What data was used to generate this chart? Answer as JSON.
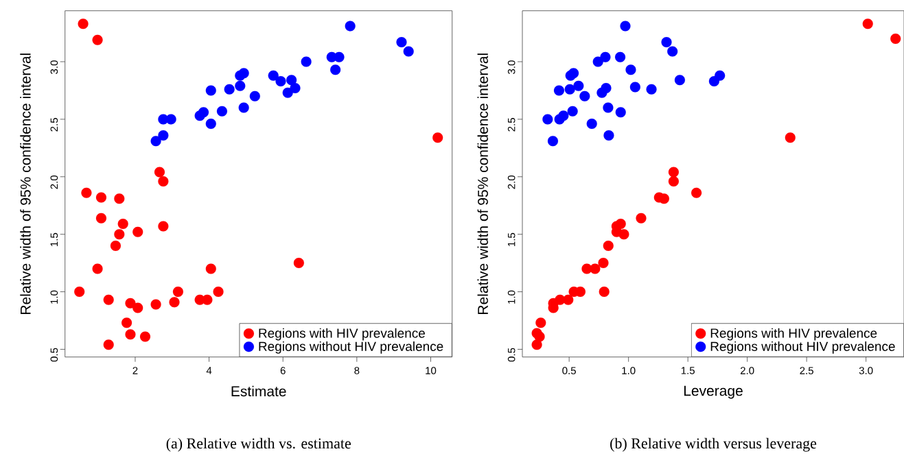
{
  "chart_data": [
    {
      "type": "scatter",
      "title": "(a) Relative width vs. estimate",
      "xlabel": "Estimate",
      "ylabel": "Relative width of 95% confidence interval",
      "xlim": [
        0.1,
        10.58
      ],
      "ylim": [
        0.433,
        3.443
      ],
      "xticks": [
        2,
        4,
        6,
        8,
        10
      ],
      "yticks": [
        0.5,
        {
          "value": 1,
          "label": "1.0"
        },
        1.5,
        {
          "value": 2,
          "label": "2.0"
        },
        2.5,
        {
          "value": 3,
          "label": "3.0"
        }
      ],
      "legend": "bottom right",
      "series": [
        {
          "name": "Regions with HIV prevalence",
          "color": "#ff0000",
          "x": [
            0.59,
            0.98,
            0.68,
            1.08,
            1.57,
            1.08,
            1.67,
            1.57,
            2.07,
            1.47,
            2.66,
            2.76,
            2.76,
            0.98,
            4.05,
            0.49,
            1.28,
            1.87,
            2.07,
            2.56,
            3.06,
            3.16,
            3.75,
            3.95,
            4.25,
            1.77,
            1.87,
            2.27,
            1.28,
            6.43,
            10.19
          ],
          "values": [
            3.33,
            3.19,
            1.86,
            1.82,
            1.81,
            1.64,
            1.59,
            1.5,
            1.52,
            1.4,
            2.04,
            1.96,
            1.57,
            1.2,
            1.2,
            1.0,
            0.93,
            0.9,
            0.86,
            0.89,
            0.91,
            1.0,
            0.93,
            0.93,
            1.0,
            0.73,
            0.63,
            0.61,
            0.54,
            1.25,
            2.34
          ]
        },
        {
          "name": "Regions without HIV prevalence",
          "color": "#0000ff",
          "x": [
            2.56,
            2.76,
            2.76,
            2.97,
            3.75,
            3.85,
            4.05,
            4.35,
            4.94,
            4.05,
            4.55,
            5.24,
            4.84,
            4.84,
            4.94,
            5.74,
            5.94,
            6.23,
            6.33,
            6.13,
            6.63,
            7.32,
            7.52,
            7.42,
            7.82,
            9.21,
            9.4
          ],
          "values": [
            2.31,
            2.36,
            2.5,
            2.5,
            2.53,
            2.56,
            2.46,
            2.57,
            2.6,
            2.75,
            2.76,
            2.7,
            2.79,
            2.88,
            2.9,
            2.88,
            2.83,
            2.84,
            2.77,
            2.73,
            3.0,
            3.04,
            3.04,
            2.93,
            3.31,
            3.17,
            3.09
          ]
        }
      ]
    },
    {
      "type": "scatter",
      "title": "(b) Relative width versus leverage",
      "xlabel": "Leverage",
      "ylabel": "Relative width of 95% confidence interval",
      "xlim": [
        0.106,
        3.32
      ],
      "ylim": [
        0.433,
        3.443
      ],
      "xticks": [
        0.5,
        {
          "value": 1,
          "label": "1.0"
        },
        1.5,
        {
          "value": 2,
          "label": "2.0"
        },
        2.5,
        {
          "value": 3,
          "label": "3.0"
        }
      ],
      "yticks": [
        0.5,
        {
          "value": 1,
          "label": "1.0"
        },
        1.5,
        {
          "value": 2,
          "label": "2.0"
        },
        2.5,
        {
          "value": 3,
          "label": "3.0"
        }
      ],
      "legend": "bottom right",
      "series": [
        {
          "name": "Regions with HIV prevalence",
          "color": "#ff0000",
          "x": [
            0.228,
            0.251,
            0.228,
            0.261,
            0.367,
            0.367,
            0.423,
            0.492,
            0.54,
            0.594,
            0.795,
            0.649,
            0.718,
            0.788,
            0.83,
            0.9,
            0.9,
            0.934,
            0.961,
            1.106,
            1.258,
            1.299,
            1.38,
            1.38,
            1.572,
            2.362,
            3.015,
            3.249
          ],
          "values": [
            0.64,
            0.61,
            0.54,
            0.73,
            0.86,
            0.9,
            0.93,
            0.93,
            1.0,
            1.0,
            1.0,
            1.2,
            1.2,
            1.25,
            1.4,
            1.52,
            1.57,
            1.59,
            1.5,
            1.64,
            1.82,
            1.81,
            2.04,
            1.96,
            1.86,
            2.34,
            3.33,
            3.2
          ]
        },
        {
          "name": "Regions without HIV prevalence",
          "color": "#0000ff",
          "x": [
            0.973,
            1.32,
            1.37,
            0.743,
            0.805,
            0.93,
            1.019,
            0.512,
            0.537,
            0.579,
            0.415,
            0.506,
            0.631,
            0.776,
            0.811,
            1.056,
            1.193,
            1.432,
            1.721,
            1.769,
            0.319,
            0.419,
            0.452,
            0.529,
            0.691,
            0.828,
            0.934,
            0.363,
            0.834
          ],
          "values": [
            3.31,
            3.17,
            3.09,
            3.0,
            3.04,
            3.04,
            2.93,
            2.88,
            2.9,
            2.79,
            2.75,
            2.76,
            2.7,
            2.73,
            2.77,
            2.78,
            2.76,
            2.84,
            2.83,
            2.88,
            2.5,
            2.5,
            2.53,
            2.57,
            2.46,
            2.6,
            2.56,
            2.31,
            2.36
          ]
        }
      ]
    }
  ]
}
